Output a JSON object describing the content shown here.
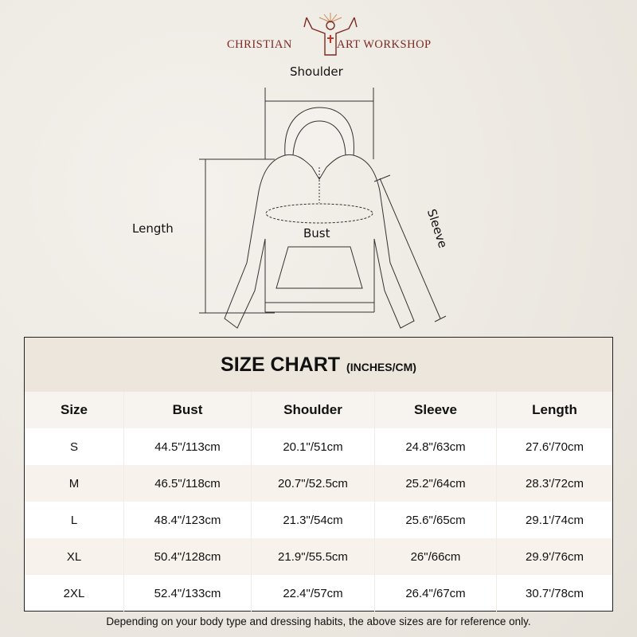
{
  "brand": {
    "left": "CHRISTIAN",
    "right": "ART WORKSHOP"
  },
  "diagram": {
    "shoulder": "Shoulder",
    "length": "Length",
    "bust": "Bust",
    "sleeve": "Sleeve"
  },
  "table": {
    "title": "SIZE CHART",
    "unit": "(INCHES/CM)",
    "headers": [
      "Size",
      "Bust",
      "Shoulder",
      "Sleeve",
      "Length"
    ],
    "rows": [
      [
        "S",
        "44.5\"/113cm",
        "20.1\"/51cm",
        "24.8\"/63cm",
        "27.6'/70cm"
      ],
      [
        "M",
        "46.5\"/118cm",
        "20.7\"/52.5cm",
        "25.2\"/64cm",
        "28.3'/72cm"
      ],
      [
        "L",
        "48.4\"/123cm",
        "21.3\"/54cm",
        "25.6\"/65cm",
        "29.1'/74cm"
      ],
      [
        "XL",
        "50.4\"/128cm",
        "21.9\"/55.5cm",
        "26\"/66cm",
        "29.9'/76cm"
      ],
      [
        "2XL",
        "52.4\"/133cm",
        "22.4\"/57cm",
        "26.4\"/67cm",
        "30.7'/78cm"
      ]
    ]
  },
  "note": "Depending on your body type and dressing habits, the above sizes are for reference only.",
  "colors": {
    "brand": "#7a2a22",
    "title_bg": "#ece6dc",
    "alt_row": "#f7f2eb"
  }
}
